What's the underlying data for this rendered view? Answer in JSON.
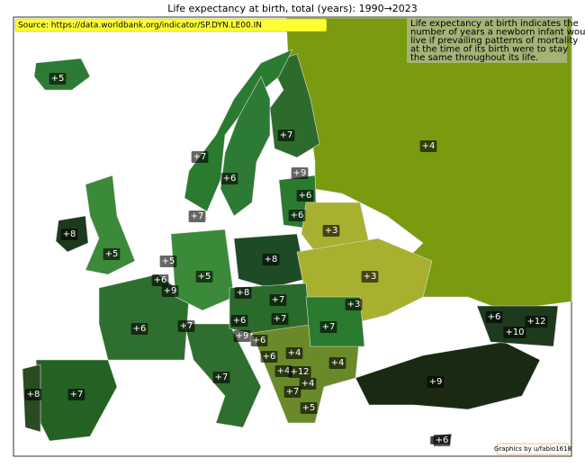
{
  "header": {
    "title": "Life expectancy at birth, total (years):  1990→2023",
    "source": "Source: https://data.worldbank.org/indicator/SP.DYN.LE00.IN",
    "note": [
      "Life expectancy at birth indicates the",
      "number of years a newborn infant would",
      "live if prevailing patterns of mortality",
      "at the time of its birth were to stay",
      "the same throughout its life."
    ],
    "credit": "Graphics by u/fabio1618"
  },
  "labels": [
    "+5",
    "+7",
    "+4",
    "+7",
    "+6",
    "+9",
    "+6",
    "+7",
    "+6",
    "+8",
    "+3",
    "+5",
    "+8",
    "+5",
    "+6",
    "+9",
    "+5",
    "+3",
    "+8",
    "+7",
    "+3",
    "+6",
    "+12",
    "+6",
    "+7",
    "+6",
    "+7",
    "+7",
    "+10",
    "+9",
    "+6",
    "+4",
    "+6",
    "+4",
    "+7",
    "+4",
    "+12",
    "+9",
    "+4",
    "+8",
    "+7",
    "+7",
    "+5",
    "+6"
  ]
}
